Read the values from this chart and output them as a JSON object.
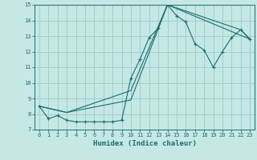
{
  "xlabel": "Humidex (Indice chaleur)",
  "bg_color": "#c5e8e5",
  "grid_color": "#9fcfcc",
  "line_color": "#1a6e6e",
  "xlim": [
    -0.5,
    23.5
  ],
  "ylim": [
    7,
    15
  ],
  "xticks": [
    0,
    1,
    2,
    3,
    4,
    5,
    6,
    7,
    8,
    9,
    10,
    11,
    12,
    13,
    14,
    15,
    16,
    17,
    18,
    19,
    20,
    21,
    22,
    23
  ],
  "yticks": [
    7,
    8,
    9,
    10,
    11,
    12,
    13,
    14,
    15
  ],
  "line1_x": [
    0,
    1,
    2,
    3,
    4,
    5,
    6,
    7,
    8,
    9,
    10,
    11,
    12,
    13,
    14,
    15,
    16,
    17,
    18,
    19,
    20,
    21,
    22,
    23
  ],
  "line1_y": [
    8.5,
    7.7,
    7.9,
    7.6,
    7.5,
    7.5,
    7.5,
    7.5,
    7.5,
    7.6,
    10.3,
    11.5,
    12.9,
    13.5,
    15.0,
    14.3,
    13.9,
    12.5,
    12.1,
    11.0,
    12.0,
    12.9,
    13.4,
    12.8
  ],
  "line2_x": [
    0,
    3,
    10,
    14,
    23
  ],
  "line2_y": [
    8.5,
    8.1,
    9.5,
    15.0,
    12.8
  ],
  "line3_x": [
    0,
    3,
    10,
    14,
    22,
    23
  ],
  "line3_y": [
    8.5,
    8.1,
    8.9,
    15.0,
    13.4,
    12.8
  ]
}
